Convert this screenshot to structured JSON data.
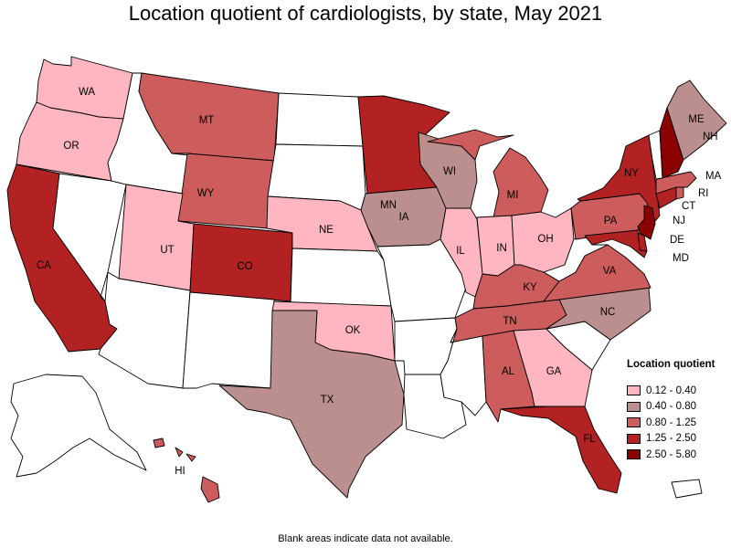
{
  "title": "Location quotient of cardiologists, by state, May 2021",
  "footnote": "Blank areas indicate data not available.",
  "legend": {
    "title": "Location quotient",
    "items": [
      {
        "label": "0.12 - 0.40",
        "color": "#ffb6c1"
      },
      {
        "label": "0.40 - 0.80",
        "color": "#bc8f8f"
      },
      {
        "label": "0.80 - 1.25",
        "color": "#cd5c5c"
      },
      {
        "label": "1.25 - 2.50",
        "color": "#b22222"
      },
      {
        "label": "2.50 - 5.80",
        "color": "#8b0000"
      }
    ]
  },
  "states": {
    "WA": {
      "label": "WA",
      "class": "0.12 - 0.40"
    },
    "OR": {
      "label": "OR",
      "class": "0.12 - 0.40"
    },
    "CA": {
      "label": "CA",
      "class": "1.25 - 2.50"
    },
    "NV": {
      "label": "",
      "class": "no data"
    },
    "ID": {
      "label": "",
      "class": "no data"
    },
    "MT": {
      "label": "MT",
      "class": "0.80 - 1.25"
    },
    "WY": {
      "label": "WY",
      "class": "0.80 - 1.25"
    },
    "UT": {
      "label": "UT",
      "class": "0.12 - 0.40"
    },
    "AZ": {
      "label": "",
      "class": "no data"
    },
    "CO": {
      "label": "CO",
      "class": "1.25 - 2.50"
    },
    "NM": {
      "label": "",
      "class": "no data"
    },
    "ND": {
      "label": "",
      "class": "no data"
    },
    "SD": {
      "label": "",
      "class": "no data"
    },
    "NE": {
      "label": "NE",
      "class": "0.12 - 0.40"
    },
    "KS": {
      "label": "",
      "class": "no data"
    },
    "OK": {
      "label": "OK",
      "class": "0.12 - 0.40"
    },
    "TX": {
      "label": "TX",
      "class": "0.40 - 0.80"
    },
    "MN": {
      "label": "MN",
      "class": "1.25 - 2.50"
    },
    "IA": {
      "label": "IA",
      "class": "0.40 - 0.80"
    },
    "MO": {
      "label": "",
      "class": "no data"
    },
    "AR": {
      "label": "",
      "class": "no data"
    },
    "LA": {
      "label": "",
      "class": "no data"
    },
    "WI": {
      "label": "WI",
      "class": "0.40 - 0.80"
    },
    "IL": {
      "label": "IL",
      "class": "0.12 - 0.40"
    },
    "MI": {
      "label": "MI",
      "class": "0.80 - 1.25"
    },
    "IN": {
      "label": "IN",
      "class": "0.12 - 0.40"
    },
    "OH": {
      "label": "OH",
      "class": "0.12 - 0.40"
    },
    "KY": {
      "label": "KY",
      "class": "0.80 - 1.25"
    },
    "TN": {
      "label": "TN",
      "class": "0.80 - 1.25"
    },
    "MS": {
      "label": "",
      "class": "no data"
    },
    "AL": {
      "label": "AL",
      "class": "0.80 - 1.25"
    },
    "GA": {
      "label": "GA",
      "class": "0.12 - 0.40"
    },
    "FL": {
      "label": "FL",
      "class": "1.25 - 2.50"
    },
    "SC": {
      "label": "",
      "class": "no data"
    },
    "NC": {
      "label": "NC",
      "class": "0.40 - 0.80"
    },
    "VA": {
      "label": "VA",
      "class": "0.80 - 1.25"
    },
    "WV": {
      "label": "",
      "class": "no data"
    },
    "PA": {
      "label": "PA",
      "class": "0.80 - 1.25"
    },
    "NY": {
      "label": "NY",
      "class": "1.25 - 2.50"
    },
    "NJ": {
      "label": "NJ",
      "class": "2.50 - 5.80"
    },
    "DE": {
      "label": "DE",
      "class": "1.25 - 2.50"
    },
    "MD": {
      "label": "MD",
      "class": "1.25 - 2.50"
    },
    "CT": {
      "label": "CT",
      "class": "1.25 - 2.50"
    },
    "RI": {
      "label": "RI",
      "class": "0.80 - 1.25"
    },
    "MA": {
      "label": "MA",
      "class": "0.80 - 1.25"
    },
    "VT": {
      "label": "",
      "class": "no data"
    },
    "NH": {
      "label": "NH",
      "class": "2.50 - 5.80"
    },
    "ME": {
      "label": "ME",
      "class": "0.40 - 0.80"
    },
    "AK": {
      "label": "",
      "class": "no data"
    },
    "HI": {
      "label": "HI",
      "class": "0.80 - 1.25"
    },
    "PR": {
      "label": "",
      "class": "no data"
    }
  }
}
